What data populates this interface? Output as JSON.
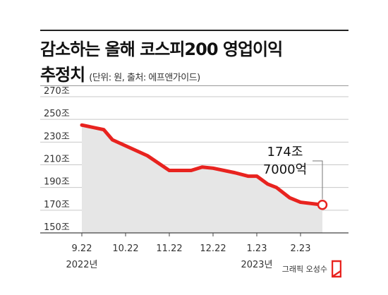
{
  "title_line1": "감소하는 올해 코스피200 영업이익",
  "title_line2": "추정치",
  "subtitle": "(단위: 원, 출처: 에프앤가이드)",
  "credit": "그래픽 오성수",
  "colors": {
    "line": "#e8231f",
    "area": "#e6e6e6",
    "grid": "#c8c8c8",
    "rule": "#222222"
  },
  "chart_data": {
    "type": "area",
    "ylim": [
      150,
      270
    ],
    "yticks": [
      150,
      170,
      190,
      210,
      230,
      250,
      270
    ],
    "ytick_labels": [
      "150조",
      "170조",
      "190조",
      "210조",
      "230조",
      "250조",
      "270조"
    ],
    "x_tick_labels": [
      "9.22",
      "10.22",
      "11.22",
      "12.22",
      "1.23",
      "2.23"
    ],
    "x_year_labels": [
      {
        "at": "9.22",
        "label": "2022년"
      },
      {
        "at": "1.23",
        "label": "2023년"
      }
    ],
    "series": [
      {
        "x": [
          0,
          0.5,
          0.7,
          1.5,
          2.0,
          2.5,
          2.75,
          3.0,
          3.5,
          3.8,
          4.0,
          4.25,
          4.45,
          4.75,
          5.0,
          5.5
        ],
        "values": [
          245,
          241,
          232,
          218,
          205,
          205,
          208,
          207,
          203,
          200,
          200,
          193,
          190,
          181,
          177,
          174.7
        ]
      }
    ],
    "annotation": {
      "line1": "174조",
      "line2": "7000억",
      "value": 174.7
    },
    "grid": true
  }
}
